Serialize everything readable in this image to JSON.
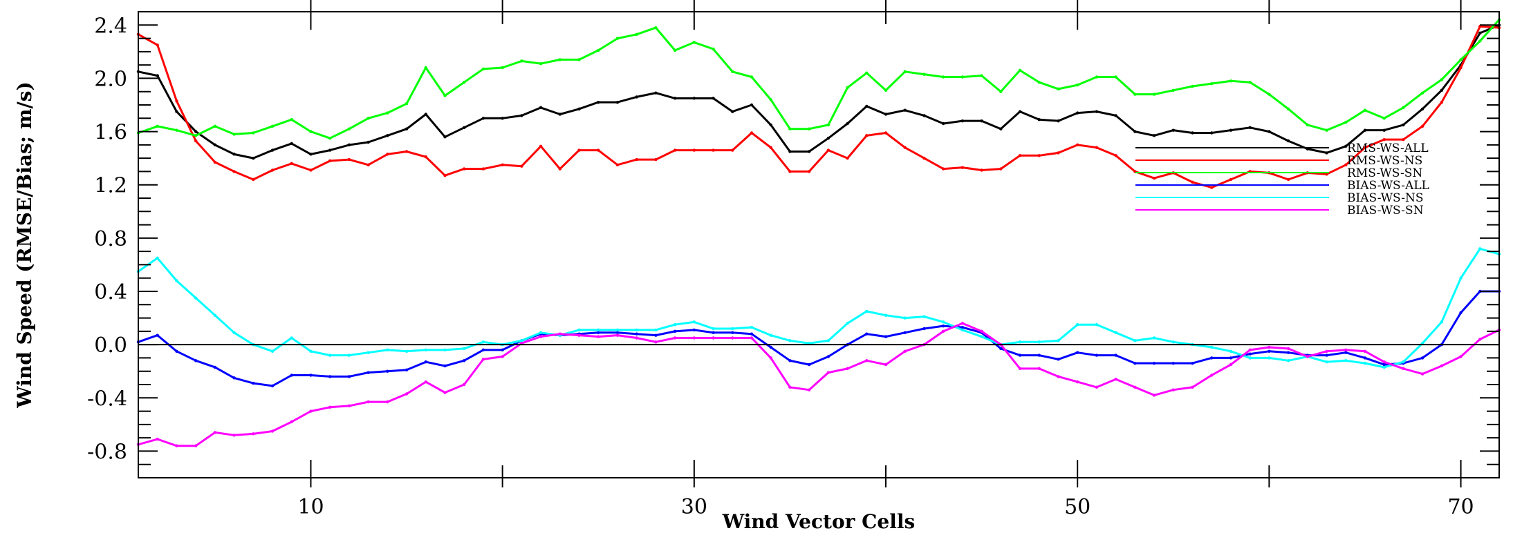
{
  "chart_data": {
    "type": "line",
    "title": "",
    "xlabel": "Wind Vector Cells",
    "ylabel": "Wind Speed (RMSE/Bias; m/s)",
    "xlim": [
      1,
      72
    ],
    "ylim": [
      -1.0,
      2.5
    ],
    "x_ticks": [
      10,
      30,
      50,
      70
    ],
    "x_tick_labels": [
      "10",
      "30",
      "50",
      "70"
    ],
    "y_ticks": [
      -0.8,
      -0.4,
      0.0,
      0.4,
      0.8,
      1.2,
      1.6,
      2.0,
      2.4
    ],
    "y_tick_labels": [
      "-0.8",
      "-0.4",
      "0.0",
      "0.4",
      "0.8",
      "1.2",
      "1.6",
      "2.0",
      "2.4"
    ],
    "zero_line": true,
    "grid": false,
    "legend_position": "right, middle",
    "x": [
      1,
      2,
      3,
      4,
      5,
      6,
      7,
      8,
      9,
      10,
      11,
      12,
      13,
      14,
      15,
      16,
      17,
      18,
      19,
      20,
      21,
      22,
      23,
      24,
      25,
      26,
      27,
      28,
      29,
      30,
      31,
      32,
      33,
      34,
      35,
      36,
      37,
      38,
      39,
      40,
      41,
      42,
      43,
      44,
      45,
      46,
      47,
      48,
      49,
      50,
      51,
      52,
      53,
      54,
      55,
      56,
      57,
      58,
      59,
      60,
      61,
      62,
      63,
      64,
      65,
      66,
      67,
      68,
      69,
      70,
      71,
      72
    ],
    "series": [
      {
        "name": "RMS-WS-ALL",
        "color": "#000000",
        "values": [
          2.05,
          2.02,
          1.75,
          1.6,
          1.5,
          1.43,
          1.4,
          1.46,
          1.51,
          1.43,
          1.46,
          1.5,
          1.52,
          1.57,
          1.62,
          1.73,
          1.56,
          1.63,
          1.7,
          1.7,
          1.72,
          1.78,
          1.73,
          1.77,
          1.82,
          1.82,
          1.86,
          1.89,
          1.85,
          1.85,
          1.85,
          1.75,
          1.8,
          1.65,
          1.45,
          1.45,
          1.55,
          1.66,
          1.79,
          1.73,
          1.76,
          1.72,
          1.66,
          1.68,
          1.68,
          1.62,
          1.75,
          1.69,
          1.68,
          1.74,
          1.75,
          1.72,
          1.6,
          1.57,
          1.61,
          1.59,
          1.59,
          1.61,
          1.63,
          1.6,
          1.53,
          1.47,
          1.44,
          1.49,
          1.61,
          1.61,
          1.65,
          1.77,
          1.91,
          2.1,
          2.34,
          2.4
        ]
      },
      {
        "name": "RMS-WS-NS",
        "color": "#ff0000",
        "values": [
          2.33,
          2.25,
          1.83,
          1.53,
          1.37,
          1.3,
          1.24,
          1.31,
          1.36,
          1.31,
          1.38,
          1.39,
          1.35,
          1.43,
          1.45,
          1.41,
          1.27,
          1.32,
          1.32,
          1.35,
          1.34,
          1.49,
          1.32,
          1.46,
          1.46,
          1.35,
          1.39,
          1.39,
          1.46,
          1.46,
          1.46,
          1.46,
          1.59,
          1.48,
          1.3,
          1.3,
          1.46,
          1.4,
          1.57,
          1.59,
          1.48,
          1.4,
          1.32,
          1.33,
          1.31,
          1.32,
          1.42,
          1.42,
          1.44,
          1.5,
          1.48,
          1.42,
          1.3,
          1.25,
          1.29,
          1.22,
          1.18,
          1.24,
          1.3,
          1.29,
          1.24,
          1.29,
          1.28,
          1.35,
          1.48,
          1.54,
          1.54,
          1.64,
          1.82,
          2.08,
          2.39,
          2.38
        ]
      },
      {
        "name": "RMS-WS-SN",
        "color": "#00ff00",
        "values": [
          1.59,
          1.64,
          1.61,
          1.57,
          1.64,
          1.58,
          1.59,
          1.64,
          1.69,
          1.6,
          1.55,
          1.62,
          1.7,
          1.74,
          1.81,
          2.08,
          1.87,
          1.97,
          2.07,
          2.08,
          2.13,
          2.11,
          2.14,
          2.14,
          2.21,
          2.3,
          2.33,
          2.38,
          2.21,
          2.27,
          2.22,
          2.05,
          2.01,
          1.84,
          1.62,
          1.62,
          1.65,
          1.93,
          2.04,
          1.91,
          2.05,
          2.03,
          2.01,
          2.01,
          2.02,
          1.9,
          2.06,
          1.97,
          1.92,
          1.95,
          2.01,
          2.01,
          1.88,
          1.88,
          1.91,
          1.94,
          1.96,
          1.98,
          1.97,
          1.88,
          1.77,
          1.65,
          1.61,
          1.67,
          1.76,
          1.7,
          1.78,
          1.89,
          1.99,
          2.14,
          2.28,
          2.44
        ]
      },
      {
        "name": "BIAS-WS-ALL",
        "color": "#0000ff",
        "values": [
          0.02,
          0.07,
          -0.05,
          -0.12,
          -0.17,
          -0.25,
          -0.29,
          -0.31,
          -0.23,
          -0.23,
          -0.24,
          -0.24,
          -0.21,
          -0.2,
          -0.19,
          -0.13,
          -0.16,
          -0.12,
          -0.04,
          -0.04,
          0.03,
          0.08,
          0.07,
          0.08,
          0.09,
          0.09,
          0.08,
          0.07,
          0.1,
          0.11,
          0.09,
          0.09,
          0.08,
          -0.02,
          -0.12,
          -0.15,
          -0.09,
          0.0,
          0.08,
          0.06,
          0.09,
          0.12,
          0.14,
          0.13,
          0.09,
          -0.03,
          -0.08,
          -0.08,
          -0.11,
          -0.06,
          -0.08,
          -0.08,
          -0.14,
          -0.14,
          -0.14,
          -0.14,
          -0.1,
          -0.1,
          -0.07,
          -0.05,
          -0.06,
          -0.08,
          -0.08,
          -0.06,
          -0.1,
          -0.15,
          -0.14,
          -0.1,
          0.0,
          0.24,
          0.4,
          0.4
        ]
      },
      {
        "name": "BIAS-WS-NS",
        "color": "#00ffff",
        "values": [
          0.55,
          0.65,
          0.48,
          0.35,
          0.22,
          0.09,
          0.0,
          -0.05,
          0.05,
          -0.05,
          -0.08,
          -0.08,
          -0.06,
          -0.04,
          -0.05,
          -0.04,
          -0.04,
          -0.03,
          0.02,
          0.0,
          0.03,
          0.09,
          0.07,
          0.11,
          0.11,
          0.11,
          0.11,
          0.11,
          0.15,
          0.17,
          0.12,
          0.12,
          0.13,
          0.07,
          0.03,
          0.01,
          0.03,
          0.16,
          0.25,
          0.22,
          0.2,
          0.21,
          0.17,
          0.11,
          0.06,
          0.0,
          0.02,
          0.02,
          0.03,
          0.15,
          0.15,
          0.09,
          0.03,
          0.05,
          0.02,
          0.0,
          -0.02,
          -0.05,
          -0.1,
          -0.1,
          -0.12,
          -0.09,
          -0.13,
          -0.12,
          -0.14,
          -0.17,
          -0.13,
          0.01,
          0.17,
          0.5,
          0.72,
          0.68
        ]
      },
      {
        "name": "BIAS-WS-SN",
        "color": "#ff00ff",
        "values": [
          -0.75,
          -0.71,
          -0.76,
          -0.76,
          -0.66,
          -0.68,
          -0.67,
          -0.65,
          -0.58,
          -0.5,
          -0.47,
          -0.46,
          -0.43,
          -0.43,
          -0.37,
          -0.28,
          -0.36,
          -0.3,
          -0.11,
          -0.09,
          0.01,
          0.06,
          0.08,
          0.07,
          0.06,
          0.07,
          0.05,
          0.02,
          0.05,
          0.05,
          0.05,
          0.05,
          0.05,
          -0.1,
          -0.32,
          -0.34,
          -0.21,
          -0.18,
          -0.12,
          -0.15,
          -0.05,
          0.0,
          0.1,
          0.16,
          0.1,
          0.0,
          -0.18,
          -0.18,
          -0.24,
          -0.28,
          -0.32,
          -0.26,
          -0.32,
          -0.38,
          -0.34,
          -0.32,
          -0.23,
          -0.15,
          -0.04,
          -0.02,
          -0.03,
          -0.09,
          -0.05,
          -0.04,
          -0.05,
          -0.13,
          -0.18,
          -0.22,
          -0.16,
          -0.09,
          0.04,
          0.11
        ]
      }
    ]
  }
}
